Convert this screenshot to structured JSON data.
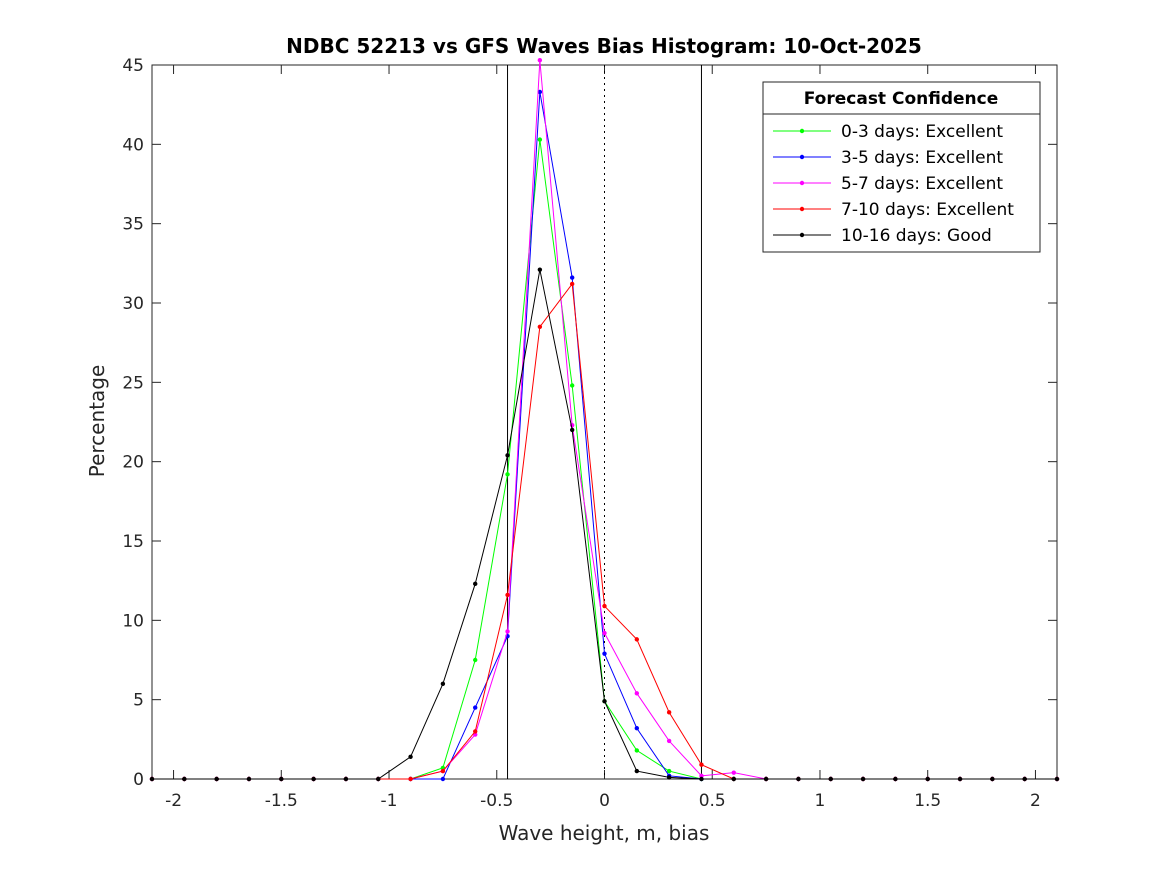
{
  "chart_data": {
    "type": "line",
    "title": "NDBC 52213 vs GFS Waves Bias Histogram: 10-Oct-2025",
    "xlabel": "Wave height, m, bias",
    "ylabel": "Percentage",
    "xlim": [
      -2.1,
      2.1
    ],
    "ylim": [
      0,
      45
    ],
    "xticks": [
      -2,
      -1.5,
      -1,
      -0.5,
      0,
      0.5,
      1,
      1.5,
      2
    ],
    "xtick_labels": [
      "-2",
      "-1.5",
      "-1",
      "-0.5",
      "0",
      "0.5",
      "1",
      "1.5",
      "2"
    ],
    "yticks": [
      0,
      5,
      10,
      15,
      20,
      25,
      30,
      35,
      40,
      45
    ],
    "ytick_labels": [
      "0",
      "5",
      "10",
      "15",
      "20",
      "25",
      "30",
      "35",
      "40",
      "45"
    ],
    "vlines_solid": [
      -0.45,
      0.45
    ],
    "vline_dotted": 0,
    "legend": {
      "title": "Forecast Confidence",
      "location": "top-right"
    },
    "x": [
      -2.1,
      -1.95,
      -1.8,
      -1.65,
      -1.5,
      -1.35,
      -1.2,
      -1.05,
      -0.9,
      -0.75,
      -0.6,
      -0.45,
      -0.3,
      -0.15,
      0,
      0.15,
      0.3,
      0.45,
      0.6,
      0.75,
      0.9,
      1.05,
      1.2,
      1.35,
      1.5,
      1.65,
      1.8,
      1.95,
      2.1
    ],
    "series": [
      {
        "name": "0-3 days: Excellent",
        "color": "#00ff00",
        "values": [
          0,
          0,
          0,
          0,
          0,
          0,
          0,
          0,
          0,
          0.7,
          7.5,
          19.2,
          40.3,
          24.8,
          4.9,
          1.8,
          0.5,
          0,
          0,
          0,
          0,
          0,
          0,
          0,
          0,
          0,
          0,
          0,
          0
        ]
      },
      {
        "name": "3-5 days: Excellent",
        "color": "#0000ff",
        "values": [
          0,
          0,
          0,
          0,
          0,
          0,
          0,
          0,
          0,
          0,
          4.5,
          9.0,
          43.3,
          31.6,
          7.9,
          3.2,
          0.2,
          0,
          0,
          0,
          0,
          0,
          0,
          0,
          0,
          0,
          0,
          0,
          0
        ]
      },
      {
        "name": "5-7 days: Excellent",
        "color": "#ff00ff",
        "values": [
          0,
          0,
          0,
          0,
          0,
          0,
          0,
          0,
          0,
          0.5,
          2.8,
          9.3,
          45.3,
          22.3,
          9.2,
          5.4,
          2.4,
          0.2,
          0.4,
          0,
          0,
          0,
          0,
          0,
          0,
          0,
          0,
          0,
          0
        ]
      },
      {
        "name": "7-10 days: Excellent",
        "color": "#ff0000",
        "values": [
          0,
          0,
          0,
          0,
          0,
          0,
          0,
          0,
          0,
          0.5,
          3.0,
          11.6,
          28.5,
          31.2,
          10.9,
          8.8,
          4.2,
          0.9,
          0,
          0,
          0,
          0,
          0,
          0,
          0,
          0,
          0,
          0,
          0
        ]
      },
      {
        "name": "10-16 days: Good",
        "color": "#000000",
        "values": [
          0,
          0,
          0,
          0,
          0,
          0,
          0,
          0,
          1.4,
          6.0,
          12.3,
          20.4,
          32.1,
          22.0,
          4.9,
          0.5,
          0.1,
          0,
          0,
          0,
          0,
          0,
          0,
          0,
          0,
          0,
          0,
          0,
          0
        ]
      }
    ]
  }
}
